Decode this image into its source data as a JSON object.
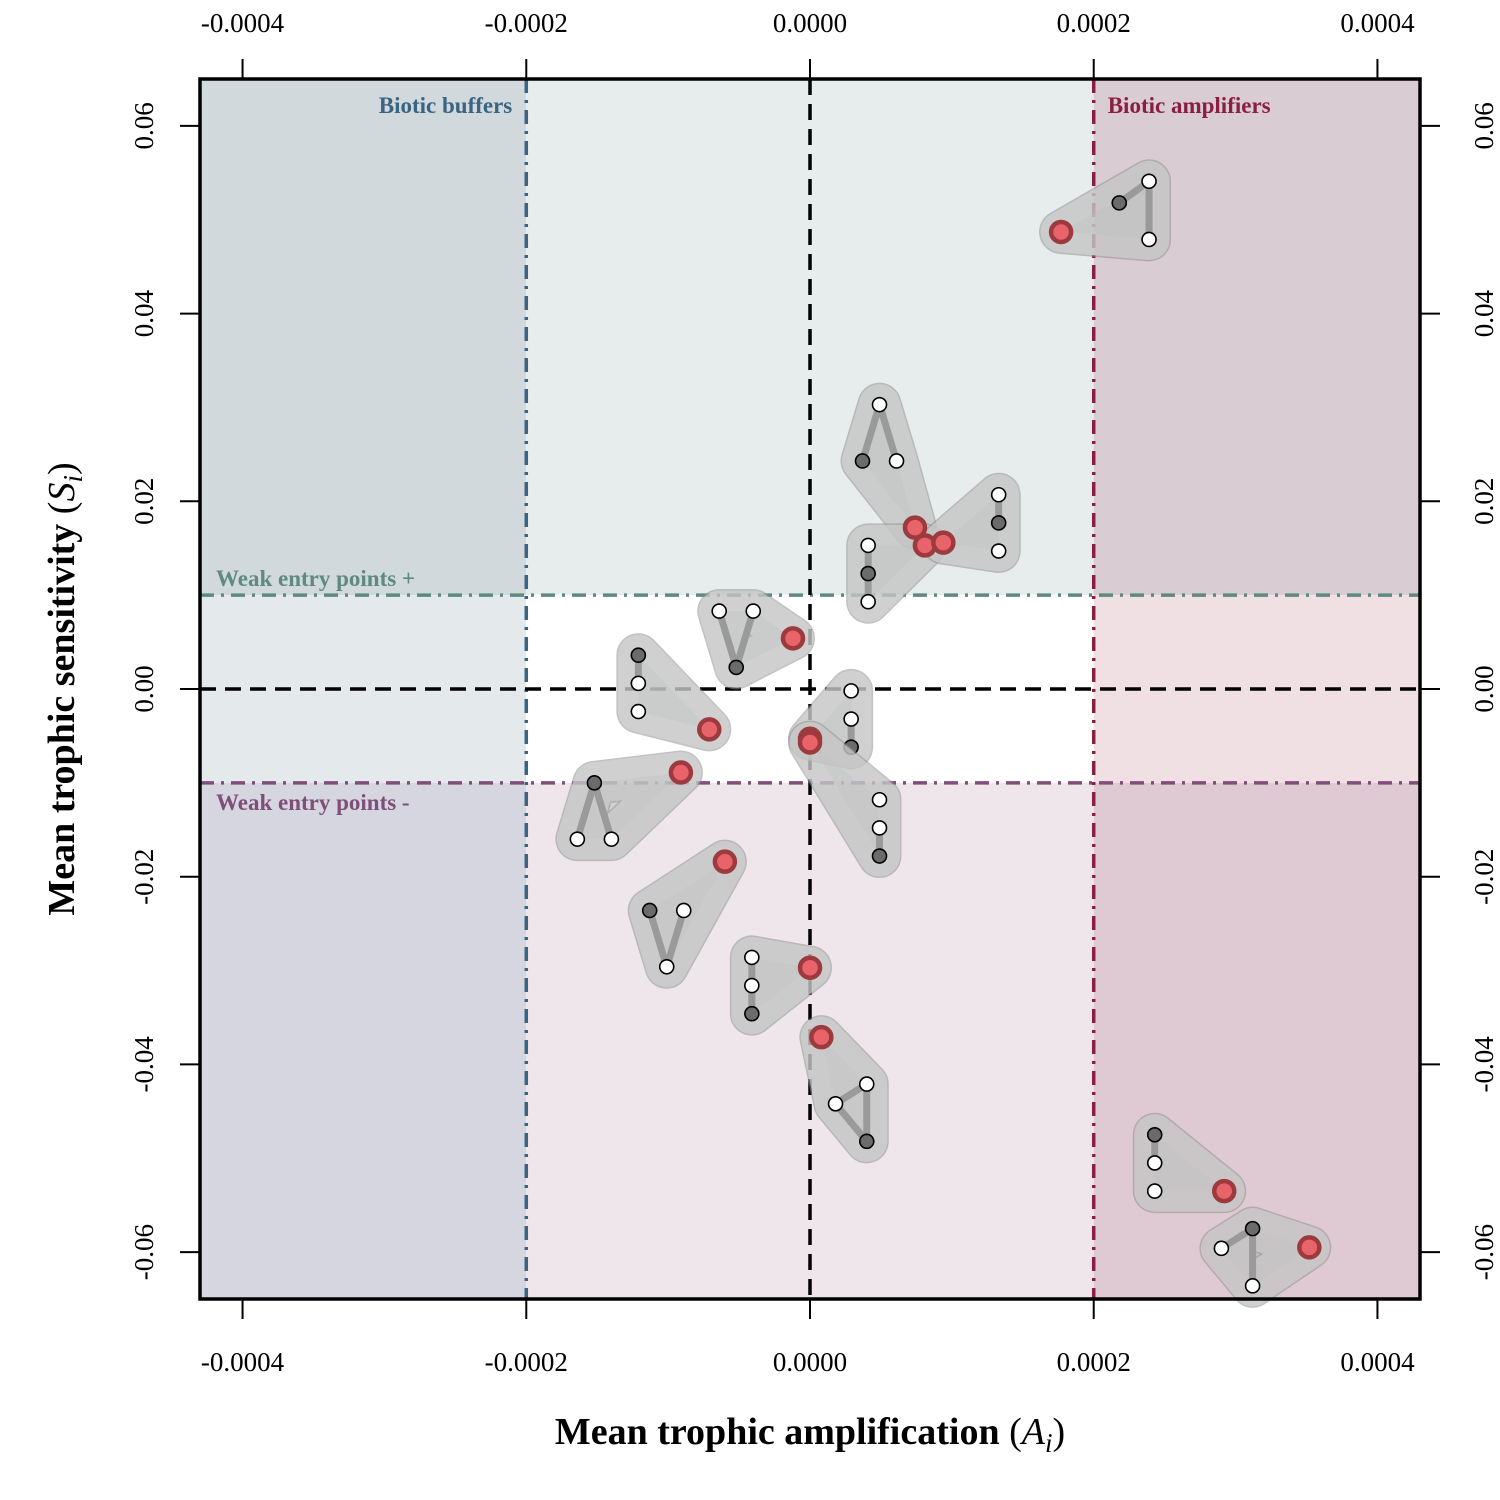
{
  "chart_data": {
    "type": "scatter",
    "xlabel": "Mean trophic amplification",
    "xlabel_symbol": "A",
    "xlabel_subscript": "i",
    "ylabel": "Mean trophic sensitivity",
    "ylabel_symbol": "S",
    "ylabel_subscript": "i",
    "xlim": [
      -0.00043,
      0.00043
    ],
    "ylim": [
      -0.065,
      0.065
    ],
    "x_ticks": [
      -0.0004,
      -0.0002,
      0.0,
      0.0002,
      0.0004
    ],
    "x_tick_labels": [
      "-0.0004",
      "-0.0002",
      "0.0000",
      "0.0002",
      "0.0004"
    ],
    "y_ticks": [
      -0.06,
      -0.04,
      -0.02,
      0.0,
      0.02,
      0.04,
      0.06
    ],
    "y_tick_labels": [
      "-0.06",
      "-0.04",
      "-0.02",
      "0.00",
      "0.02",
      "0.04",
      "0.06"
    ],
    "axes": "all four sides",
    "grid": false,
    "legend": "none",
    "thresholds": {
      "amplification": [
        -0.0002,
        0.0002
      ],
      "sensitivity": [
        -0.01,
        0.01
      ]
    },
    "region_labels": [
      {
        "key": "buffers",
        "text": "Biotic buffers",
        "color": "#3b6382"
      },
      {
        "key": "amplifiers",
        "text": "Biotic amplifiers",
        "color": "#8a1f42"
      },
      {
        "key": "weak_pos",
        "text": "Weak entry points +",
        "color": "#5e8a80"
      },
      {
        "key": "weak_neg",
        "text": "Weak entry points -",
        "color": "#7f4f79"
      }
    ],
    "colors": {
      "line_buffers": "#3b6382",
      "line_amplifiers": "#8a1f42",
      "line_weak_pos": "#5e8a80",
      "line_weak_neg": "#7f4f79",
      "zero_lines": "#000000",
      "point_fill": "#e8646a",
      "point_stroke": "#9c3a3e",
      "motif_hull_fill": "#9aa0a0",
      "motif_edge": "#9a9a9a",
      "node_dark": "#6b6b6b",
      "node_light": "#ffffff"
    },
    "points": [
      {
        "x": 0.000177,
        "y": 0.0487,
        "motif": [
          [
            0.000218,
            0.0518,
            "dark"
          ],
          [
            0.000239,
            0.0541,
            "light"
          ],
          [
            0.000239,
            0.0479,
            "light"
          ]
        ],
        "edges": [
          [
            0,
            1
          ],
          [
            1,
            2
          ]
        ]
      },
      {
        "x": 7.4e-05,
        "y": 0.0172,
        "motif": [
          [
            3.7e-05,
            0.0243,
            "dark"
          ],
          [
            4.9e-05,
            0.0303,
            "light"
          ],
          [
            6.1e-05,
            0.0243,
            "light"
          ]
        ],
        "edges": [
          [
            0,
            1
          ],
          [
            1,
            2
          ]
        ]
      },
      {
        "x": 8.1e-05,
        "y": 0.0153,
        "motif": [
          [
            4.1e-05,
            0.0153,
            "light"
          ],
          [
            4.1e-05,
            0.0123,
            "dark"
          ],
          [
            4.1e-05,
            0.0093,
            "light"
          ]
        ],
        "edges": [
          [
            0,
            1
          ],
          [
            1,
            2
          ]
        ]
      },
      {
        "x": 9.4e-05,
        "y": 0.0156,
        "motif": [
          [
            0.000133,
            0.0207,
            "light"
          ],
          [
            0.000133,
            0.0177,
            "dark"
          ],
          [
            0.000133,
            0.0147,
            "light"
          ]
        ],
        "edges": [
          [
            0,
            1
          ]
        ]
      },
      {
        "x": -1.2e-05,
        "y": 0.0054,
        "motif": [
          [
            -6.4e-05,
            0.0083,
            "light"
          ],
          [
            -4e-05,
            0.0083,
            "light"
          ],
          [
            -5.2e-05,
            0.0023,
            "dark"
          ]
        ],
        "edges": [
          [
            0,
            2
          ],
          [
            1,
            2
          ]
        ]
      },
      {
        "x": -7.1e-05,
        "y": -0.0043,
        "motif": [
          [
            -0.000121,
            0.0036,
            "dark"
          ],
          [
            -0.000121,
            0.0006,
            "light"
          ],
          [
            -0.000121,
            -0.0024,
            "light"
          ]
        ],
        "edges": [
          [
            0,
            1
          ]
        ]
      },
      {
        "x": 0.0,
        "y": -0.0053,
        "motif": [
          [
            2.9e-05,
            -0.0002,
            "light"
          ],
          [
            2.9e-05,
            -0.0032,
            "light"
          ],
          [
            2.9e-05,
            -0.0062,
            "dark"
          ]
        ],
        "edges": [
          [
            1,
            2
          ]
        ]
      },
      {
        "x": 0.0,
        "y": -0.0057,
        "motif": [
          [
            4.9e-05,
            -0.0118,
            "light"
          ],
          [
            4.9e-05,
            -0.0148,
            "light"
          ],
          [
            4.9e-05,
            -0.0178,
            "dark"
          ]
        ],
        "edges": [
          [
            1,
            2
          ]
        ]
      },
      {
        "x": -9.1e-05,
        "y": -0.0089,
        "motif": [
          [
            -0.000152,
            -0.01,
            "dark"
          ],
          [
            -0.000164,
            -0.016,
            "light"
          ],
          [
            -0.00014,
            -0.016,
            "light"
          ]
        ],
        "edges": [
          [
            0,
            1
          ],
          [
            0,
            2
          ]
        ]
      },
      {
        "x": -6e-05,
        "y": -0.0184,
        "motif": [
          [
            -0.000113,
            -0.0236,
            "dark"
          ],
          [
            -8.9e-05,
            -0.0236,
            "light"
          ],
          [
            -0.000101,
            -0.0296,
            "light"
          ]
        ],
        "edges": [
          [
            0,
            2
          ],
          [
            1,
            2
          ]
        ]
      },
      {
        "x": 0.0,
        "y": -0.0297,
        "motif": [
          [
            -4.1e-05,
            -0.0286,
            "light"
          ],
          [
            -4.1e-05,
            -0.0316,
            "light"
          ],
          [
            -4.1e-05,
            -0.0346,
            "dark"
          ]
        ],
        "edges": [
          [
            0,
            1
          ],
          [
            1,
            2
          ]
        ]
      },
      {
        "x": 8e-06,
        "y": -0.0371,
        "motif": [
          [
            4e-05,
            -0.0421,
            "light"
          ],
          [
            1.8e-05,
            -0.0442,
            "light"
          ],
          [
            4e-05,
            -0.0482,
            "dark"
          ]
        ],
        "edges": [
          [
            0,
            1
          ],
          [
            0,
            2
          ],
          [
            1,
            2
          ]
        ]
      },
      {
        "x": 0.000292,
        "y": -0.0535,
        "motif": [
          [
            0.000243,
            -0.0475,
            "dark"
          ],
          [
            0.000243,
            -0.0505,
            "light"
          ],
          [
            0.000243,
            -0.0535,
            "light"
          ]
        ],
        "edges": [
          [
            0,
            1
          ]
        ]
      },
      {
        "x": 0.000352,
        "y": -0.0595,
        "motif": [
          [
            0.000312,
            -0.0575,
            "dark"
          ],
          [
            0.00029,
            -0.0596,
            "light"
          ],
          [
            0.000312,
            -0.0636,
            "light"
          ]
        ],
        "edges": [
          [
            0,
            1
          ],
          [
            0,
            2
          ]
        ]
      }
    ]
  }
}
